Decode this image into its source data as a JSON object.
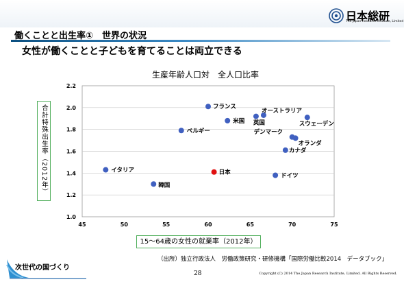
{
  "logo": {
    "name": "日本総研",
    "subtitle": "The Japan Research Institute, Limited"
  },
  "slide": {
    "section_title": "働くことと出生率①　世界の状況",
    "heading": "女性が働くことと子どもを育てることは両立できる",
    "source": "（出所）独立行政法人　労働政策研究・研修機構「国際労働比較2014　データブック」",
    "footer_text": "次世代の国づくり",
    "page_number": "28",
    "copyright": "Copyright (C) 2014 The Japan Research Institute, Limited. All Rights Reserved."
  },
  "colors": {
    "point": "#4060c0",
    "highlight": "#e01010",
    "axis_box": "#4fae5a",
    "accent": "#0b4f80"
  },
  "chart_data": {
    "type": "scatter",
    "title": "生産年齢人口対　全人口比率",
    "xlabel": "15～64歳の女性の就業率（2012年）",
    "ylabel": "合計特殊出生率（2012年）",
    "xlim": [
      45,
      75
    ],
    "ylim": [
      1.0,
      2.2
    ],
    "x_ticks": [
      "45",
      "50",
      "55",
      "60",
      "65",
      "70",
      "75"
    ],
    "y_ticks": [
      "1.0",
      "1.2",
      "1.4",
      "1.6",
      "1.8",
      "2.0",
      "2.2"
    ],
    "grid": true,
    "points": [
      {
        "label": "フランス",
        "x": 60.0,
        "y": 2.01
      },
      {
        "label": "オーストラリア",
        "x": 66.6,
        "y": 1.93
      },
      {
        "label": "英国",
        "x": 65.7,
        "y": 1.92
      },
      {
        "label": "スウェーデン",
        "x": 71.8,
        "y": 1.91
      },
      {
        "label": "米国",
        "x": 62.3,
        "y": 1.88
      },
      {
        "label": "ベルギー",
        "x": 56.8,
        "y": 1.79
      },
      {
        "label": "デンマーク",
        "x": 70.0,
        "y": 1.73
      },
      {
        "label": "オランダ",
        "x": 70.4,
        "y": 1.72
      },
      {
        "label": "カナダ",
        "x": 69.2,
        "y": 1.61
      },
      {
        "label": "イタリア",
        "x": 47.8,
        "y": 1.43
      },
      {
        "label": "日本",
        "x": 60.7,
        "y": 1.41,
        "highlight": true
      },
      {
        "label": "ドイツ",
        "x": 68.0,
        "y": 1.38
      },
      {
        "label": "韓国",
        "x": 53.5,
        "y": 1.3
      }
    ]
  }
}
